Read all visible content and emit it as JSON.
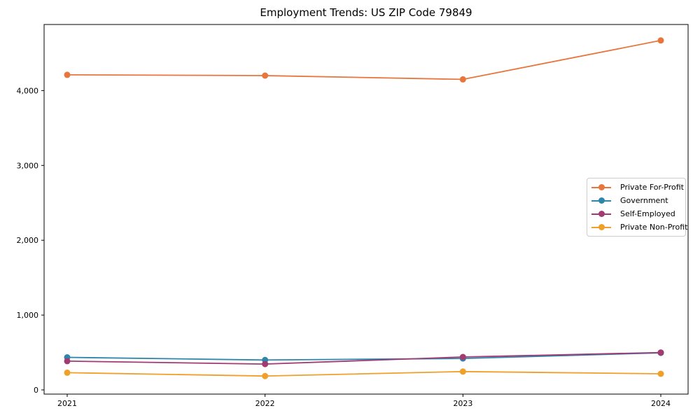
{
  "chart_data": {
    "type": "line",
    "title": "Employment Trends: US ZIP Code 79849",
    "xlabel": "",
    "ylabel": "",
    "x": [
      2021,
      2022,
      2023,
      2024
    ],
    "xticklabels": [
      "2021",
      "2022",
      "2023",
      "2024"
    ],
    "yticks": [
      0,
      1000,
      2000,
      3000,
      4000
    ],
    "yticklabels": [
      "0",
      "1,000",
      "2,000",
      "3,000",
      "4,000"
    ],
    "ylim": [
      -56,
      4883
    ],
    "grid": false,
    "marker": "circle",
    "legend_position": "center-right",
    "legend_border_color": "#cccccc",
    "axis_color": "#000000",
    "series": [
      {
        "name": "Private For-Profit",
        "color": "#e8763c",
        "values": [
          4210,
          4200,
          4150,
          4670
        ]
      },
      {
        "name": "Government",
        "color": "#2e86ab",
        "values": [
          435,
          400,
          420,
          495
        ]
      },
      {
        "name": "Self-Employed",
        "color": "#a23b72",
        "values": [
          385,
          345,
          440,
          500
        ]
      },
      {
        "name": "Private Non-Profit",
        "color": "#f0a028",
        "values": [
          230,
          185,
          245,
          215
        ]
      }
    ]
  }
}
